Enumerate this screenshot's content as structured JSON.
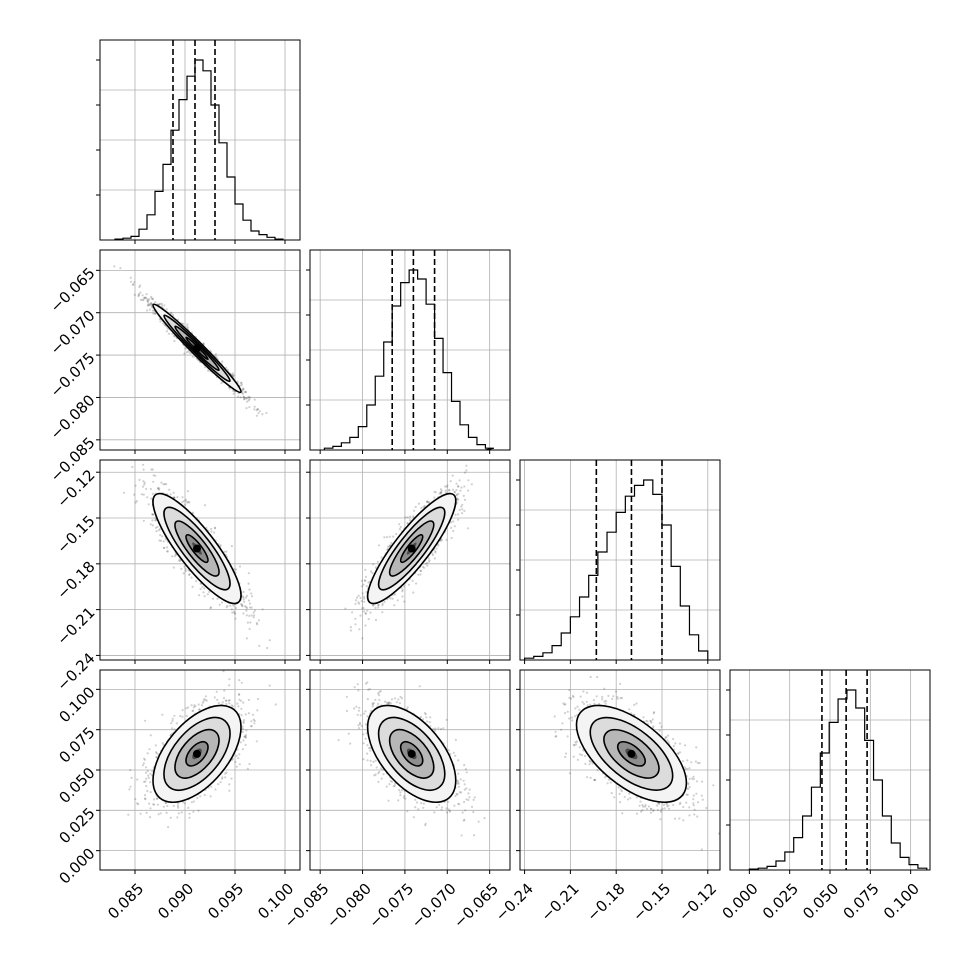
{
  "chart_data": {
    "type": "corner",
    "title": "",
    "parameters": [
      {
        "range": [
          0.0815,
          0.1015
        ],
        "ticks": [
          0.085,
          0.09,
          0.095,
          0.1
        ],
        "tick_labels": [
          "0.085",
          "0.090",
          "0.095",
          "0.100"
        ],
        "quantiles": [
          0.0888,
          0.091,
          0.093
        ],
        "hist_ylim": [
          0,
          1.0
        ],
        "hist_bins": [
          0.083,
          0.0838,
          0.0846,
          0.0854,
          0.0862,
          0.087,
          0.0878,
          0.0886,
          0.0894,
          0.0902,
          0.091,
          0.0918,
          0.0926,
          0.0934,
          0.0942,
          0.095,
          0.0958,
          0.0966,
          0.0974,
          0.0982,
          0.099,
          0.0998
        ],
        "hist_values": [
          0.005,
          0.01,
          0.02,
          0.06,
          0.14,
          0.27,
          0.42,
          0.61,
          0.78,
          0.91,
          1.0,
          0.94,
          0.75,
          0.54,
          0.35,
          0.2,
          0.11,
          0.05,
          0.03,
          0.015,
          0.005
        ]
      },
      {
        "range": [
          -0.0862,
          -0.0626
        ],
        "ticks": [
          -0.085,
          -0.08,
          -0.075,
          -0.07,
          -0.065
        ],
        "tick_labels": [
          "−0.085",
          "−0.080",
          "−0.075",
          "−0.070",
          "−0.065"
        ],
        "quantiles": [
          -0.0765,
          -0.074,
          -0.0715
        ],
        "hist_ylim": [
          0,
          1.0
        ],
        "hist_bins": [
          -0.0845,
          -0.0835,
          -0.0825,
          -0.0815,
          -0.0805,
          -0.0795,
          -0.0785,
          -0.0775,
          -0.0765,
          -0.0755,
          -0.0745,
          -0.0735,
          -0.0725,
          -0.0715,
          -0.0705,
          -0.0695,
          -0.0685,
          -0.0675,
          -0.0665,
          -0.0655
        ],
        "hist_values": [
          0.01,
          0.02,
          0.04,
          0.07,
          0.13,
          0.25,
          0.41,
          0.6,
          0.8,
          0.93,
          1.0,
          0.95,
          0.81,
          0.62,
          0.43,
          0.27,
          0.14,
          0.07,
          0.03,
          0.01
        ]
      },
      {
        "range": [
          -0.243,
          -0.112
        ],
        "ticks": [
          -0.24,
          -0.21,
          -0.18,
          -0.15,
          -0.12
        ],
        "tick_labels": [
          "−0.24",
          "−0.21",
          "−0.18",
          "−0.15",
          "−0.12"
        ],
        "quantiles": [
          -0.193,
          -0.17,
          -0.15
        ],
        "hist_ylim": [
          0,
          1.0
        ],
        "hist_bins": [
          -0.24,
          -0.234,
          -0.228,
          -0.222,
          -0.216,
          -0.21,
          -0.204,
          -0.198,
          -0.192,
          -0.186,
          -0.18,
          -0.174,
          -0.168,
          -0.162,
          -0.156,
          -0.15,
          -0.144,
          -0.138,
          -0.132,
          -0.126,
          -0.12
        ],
        "hist_values": [
          0.01,
          0.02,
          0.04,
          0.08,
          0.15,
          0.24,
          0.35,
          0.47,
          0.6,
          0.71,
          0.82,
          0.91,
          0.97,
          1.0,
          0.92,
          0.75,
          0.52,
          0.3,
          0.14,
          0.05
        ]
      },
      {
        "range": [
          -0.012,
          0.112
        ],
        "ticks": [
          0.0,
          0.025,
          0.05,
          0.075,
          0.1
        ],
        "tick_labels": [
          "0.000",
          "0.025",
          "0.050",
          "0.075",
          "0.100"
        ],
        "quantiles": [
          0.045,
          0.06,
          0.073
        ],
        "hist_ylim": [
          0,
          1.0
        ],
        "hist_bins": [
          0.0,
          0.0055,
          0.011,
          0.0165,
          0.022,
          0.0275,
          0.033,
          0.0385,
          0.044,
          0.0495,
          0.055,
          0.0605,
          0.066,
          0.0715,
          0.077,
          0.0825,
          0.088,
          0.0935,
          0.099,
          0.1045,
          0.11
        ],
        "hist_values": [
          0.005,
          0.01,
          0.02,
          0.05,
          0.1,
          0.18,
          0.3,
          0.46,
          0.65,
          0.82,
          0.95,
          1.0,
          0.9,
          0.72,
          0.5,
          0.3,
          0.15,
          0.07,
          0.03,
          0.01
        ]
      }
    ],
    "pair_distributions": [
      {
        "row": 1,
        "col": 0,
        "mean": [
          0.0912,
          -0.0742
        ],
        "std": [
          0.0022,
          0.0026
        ],
        "correlation": -0.98
      },
      {
        "row": 2,
        "col": 0,
        "mean": [
          0.0912,
          -0.17
        ],
        "std": [
          0.0022,
          0.018
        ],
        "correlation": -0.85
      },
      {
        "row": 2,
        "col": 1,
        "mean": [
          -0.0742,
          -0.17
        ],
        "std": [
          0.0026,
          0.018
        ],
        "correlation": 0.87
      },
      {
        "row": 3,
        "col": 0,
        "mean": [
          0.0912,
          0.06
        ],
        "std": [
          0.0022,
          0.015
        ],
        "correlation": 0.55
      },
      {
        "row": 3,
        "col": 1,
        "mean": [
          -0.0742,
          0.06
        ],
        "std": [
          0.0026,
          0.015
        ],
        "correlation": -0.55
      },
      {
        "row": 3,
        "col": 2,
        "mean": [
          -0.17,
          0.06
        ],
        "std": [
          0.018,
          0.015
        ],
        "correlation": -0.6
      }
    ],
    "contour_levels_sigma": [
      0.5,
      1.0,
      1.5,
      2.0
    ],
    "grid": true
  }
}
